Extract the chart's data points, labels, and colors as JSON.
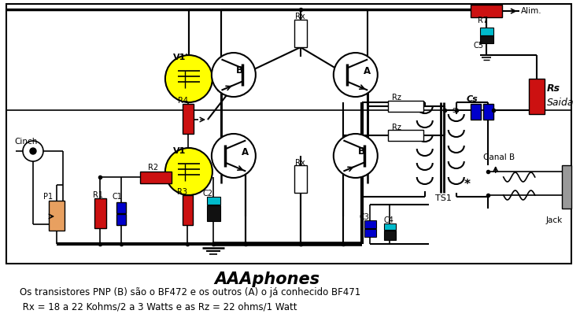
{
  "title": "AAAphones",
  "caption_line1": "Os transistores PNP (B) são o BF472 e os outros (A) o já conhecido BF471",
  "caption_line2": " Rx = 18 a 22 Kohms/2 a 3 Watts e as Rz = 22 ohms/1 Watt",
  "bg_color": "#ffffff",
  "red": "#cc1111",
  "blue": "#0000cc",
  "yellow": "#ffff00",
  "cyan": "#00bbcc",
  "orange": "#e8a060",
  "black": "#000000",
  "gray": "#999999"
}
